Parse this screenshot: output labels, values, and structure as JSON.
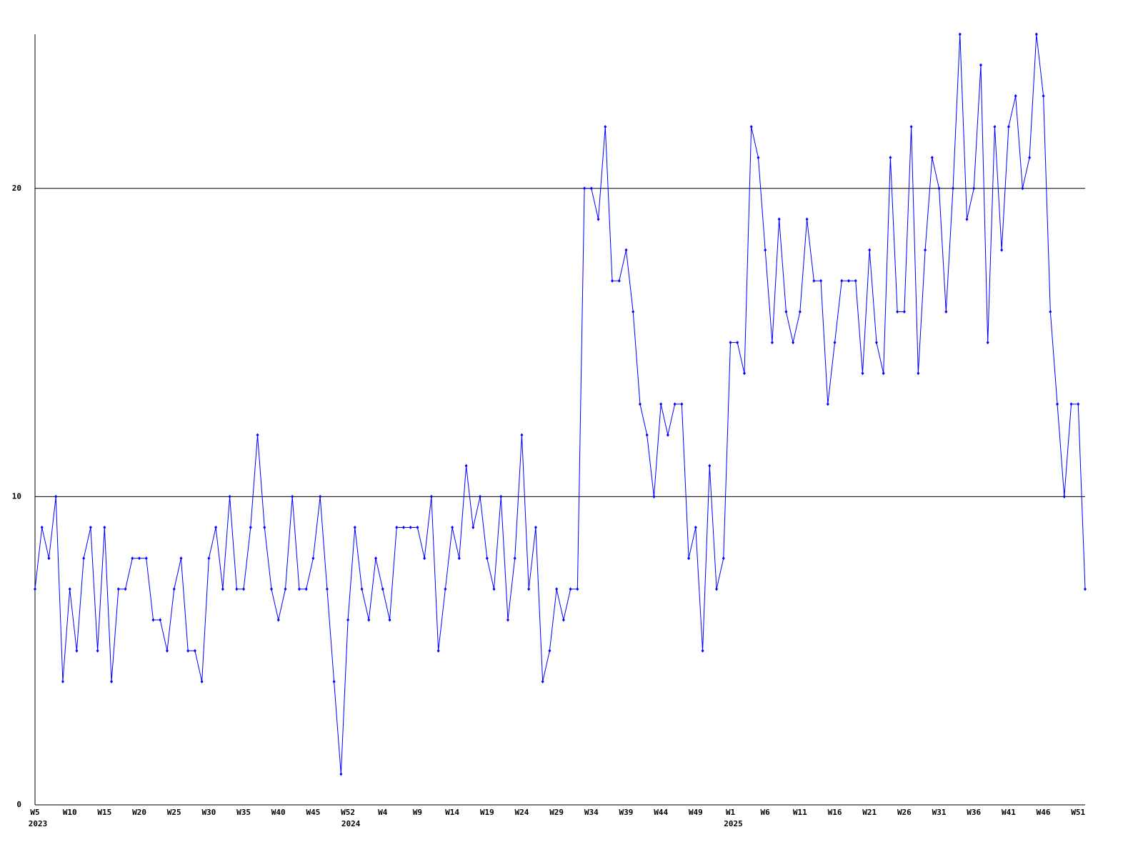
{
  "chart_data": {
    "type": "line",
    "categories": [
      "W5",
      null,
      null,
      null,
      null,
      "W10",
      null,
      null,
      null,
      null,
      "W15",
      null,
      null,
      null,
      null,
      "W20",
      null,
      null,
      null,
      null,
      "W25",
      null,
      null,
      null,
      null,
      "W30",
      null,
      null,
      null,
      null,
      "W35",
      null,
      null,
      null,
      null,
      "W40",
      null,
      null,
      null,
      null,
      "W45",
      null,
      null,
      null,
      null,
      "W52",
      null,
      null,
      null,
      null,
      "W4",
      null,
      null,
      null,
      null,
      "W9",
      null,
      null,
      null,
      null,
      "W14",
      null,
      null,
      null,
      null,
      "W19",
      null,
      null,
      null,
      null,
      "W24",
      null,
      null,
      null,
      null,
      "W29",
      null,
      null,
      null,
      null,
      "W34",
      null,
      null,
      null,
      null,
      "W39",
      null,
      null,
      null,
      null,
      "W44",
      null,
      null,
      null,
      null,
      "W49",
      null,
      null,
      null,
      null,
      "W1",
      null,
      null,
      null,
      null,
      "W6",
      null,
      null,
      null,
      null,
      "W11",
      null,
      null,
      null,
      null,
      "W16",
      null,
      null,
      null,
      null,
      "W21",
      null,
      null,
      null,
      null,
      "W26",
      null,
      null,
      null,
      null,
      "W31",
      null,
      null,
      null,
      null,
      "W36",
      null,
      null,
      null,
      null,
      "W41",
      null,
      null,
      null,
      null,
      "W46",
      null,
      null,
      null,
      null,
      "W51",
      null
    ],
    "x_groups": [
      {
        "label": "2023",
        "category": 0
      },
      {
        "label": "2024",
        "category": 45
      },
      {
        "label": "2025",
        "category": 100
      }
    ],
    "values": [
      7,
      9,
      8,
      10,
      4,
      7,
      5,
      8,
      9,
      5,
      9,
      4,
      7,
      7,
      8,
      8,
      8,
      6,
      6,
      5,
      7,
      8,
      5,
      5,
      4,
      8,
      9,
      7,
      10,
      7,
      7,
      9,
      12,
      9,
      7,
      6,
      7,
      10,
      7,
      7,
      8,
      10,
      7,
      4,
      1,
      6,
      9,
      7,
      6,
      8,
      7,
      6,
      9,
      9,
      9,
      9,
      8,
      10,
      5,
      7,
      9,
      8,
      11,
      9,
      10,
      8,
      7,
      10,
      6,
      8,
      12,
      7,
      9,
      4,
      5,
      7,
      6,
      7,
      7,
      20,
      20,
      19,
      22,
      17,
      17,
      18,
      16,
      13,
      12,
      10,
      13,
      12,
      13,
      13,
      8,
      9,
      5,
      11,
      7,
      8,
      15,
      15,
      14,
      22,
      21,
      18,
      15,
      19,
      16,
      15,
      16,
      19,
      17,
      17,
      13,
      15,
      17,
      17,
      17,
      14,
      18,
      15,
      14,
      21,
      16,
      16,
      22,
      14,
      18,
      21,
      20,
      16,
      20,
      25,
      19,
      20,
      24,
      15,
      22,
      18,
      22,
      23,
      20,
      21,
      25,
      23,
      16,
      13,
      10,
      13,
      13,
      7
    ],
    "color": "#0000ff",
    "ylim": [
      0,
      25
    ],
    "yticks": [
      0,
      10,
      20
    ],
    "grid": true
  }
}
